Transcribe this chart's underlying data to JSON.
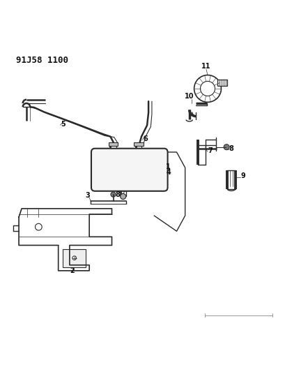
{
  "title": "91J58 1100",
  "background_color": "#ffffff",
  "line_color": "#2a2a2a",
  "label_color": "#111111",
  "figsize": [
    4.1,
    5.33
  ],
  "dpi": 100
}
